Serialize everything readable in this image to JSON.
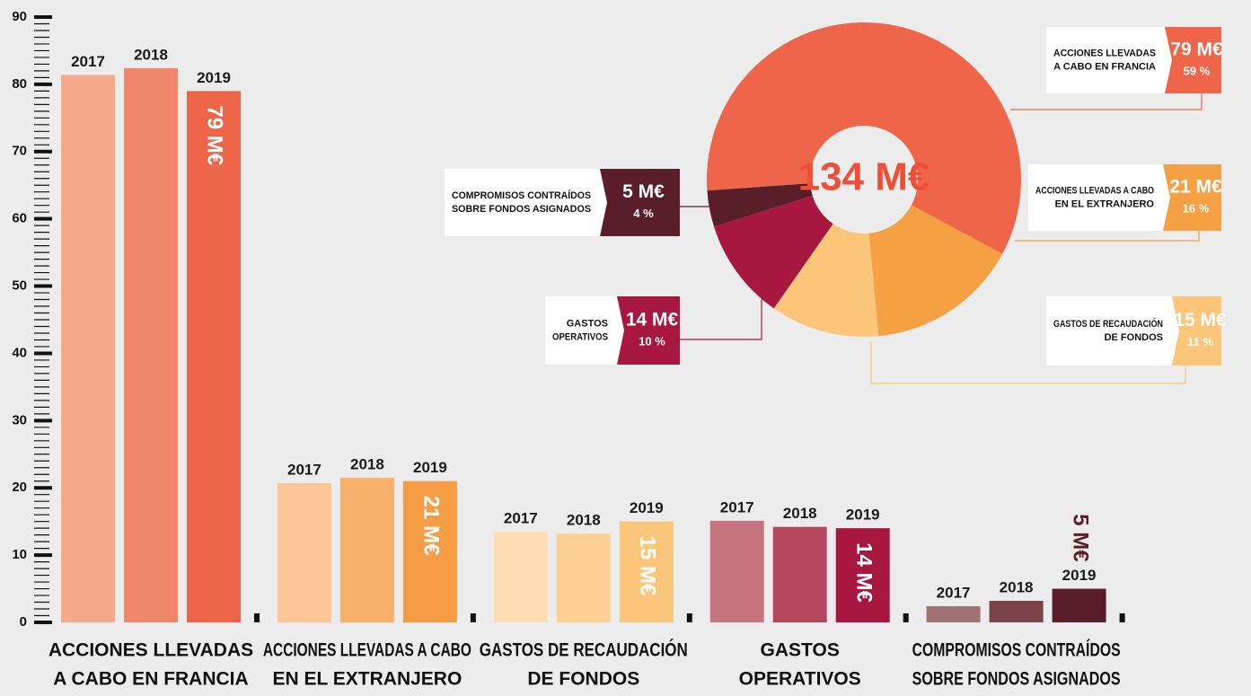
{
  "chart_data": [
    {
      "type": "bar",
      "categories": [
        [
          "ACCIONES LLEVADAS",
          "A CABO EN FRANCIA"
        ],
        [
          "ACCIONES LLEVADAS A CABO",
          "EN EL EXTRANJERO"
        ],
        [
          "GASTOS DE RECAUDACIÓN",
          "DE FONDOS"
        ],
        [
          "GASTOS",
          "OPERATIVOS"
        ],
        [
          "COMPROMISOS CONTRAÍDOS",
          "SOBRE FONDOS ASIGNADOS"
        ]
      ],
      "series": [
        {
          "name": "2017",
          "colors": [
            "#f5a88a",
            "#fbc597",
            "#fddcb4",
            "#c6757f",
            "#a07274"
          ],
          "values": [
            81.4,
            20.7,
            13.5,
            15.1,
            2.4
          ]
        },
        {
          "name": "2018",
          "colors": [
            "#f0866a",
            "#f9b06a",
            "#fccf95",
            "#b5485c",
            "#7a4249"
          ],
          "values": [
            82.4,
            21.5,
            13.2,
            14.2,
            3.2
          ]
        },
        {
          "name": "2019",
          "colors": [
            "#ec6548",
            "#f59c45",
            "#fbc57a",
            "#a8173f",
            "#5a1e2a"
          ],
          "values": [
            79,
            21,
            15,
            14,
            5
          ],
          "value_labels": [
            "79 M€",
            "21 M€",
            "15 M€",
            "14 M€",
            "5 M€"
          ]
        }
      ],
      "ylim": [
        0,
        90
      ],
      "yticks": [
        0,
        10,
        20,
        30,
        40,
        50,
        60,
        70,
        80,
        90
      ]
    },
    {
      "type": "pie",
      "center_label": "134 M€",
      "categories": [
        [
          "ACCIONES LLEVADAS",
          "A CABO EN FRANCIA"
        ],
        [
          "ACCIONES LLEVADAS A CABO",
          "EN EL EXTRANJERO"
        ],
        [
          "GASTOS DE RECAUDACIÓN",
          "DE FONDOS"
        ],
        [
          "GASTOS",
          "OPERATIVOS"
        ],
        [
          "COMPROMISOS CONTRAÍDOS",
          "SOBRE FONDOS ASIGNADOS"
        ]
      ],
      "values": [
        79,
        21,
        15,
        14,
        5
      ],
      "value_labels": [
        "79 M€",
        "21 M€",
        "15 M€",
        "14 M€",
        "5 M€"
      ],
      "percent_labels": [
        "59 %",
        "16 %",
        "11 %",
        "10 %",
        "4 %"
      ],
      "colors": [
        "#ef6549",
        "#f5a042",
        "#fbc57a",
        "#a8173f",
        "#5a1e2a"
      ]
    }
  ]
}
